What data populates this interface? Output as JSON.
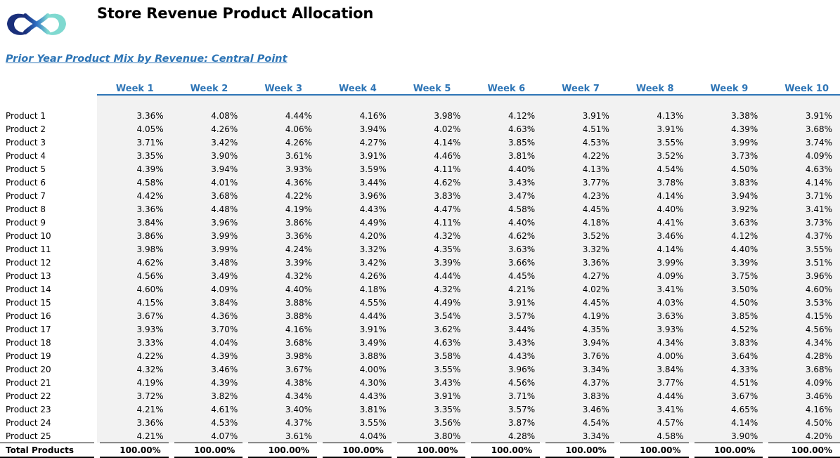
{
  "header": {
    "title": "Store Revenue Product Allocation",
    "subtitle": "Prior Year Product Mix by Revenue: Central Point",
    "logo_icon": "infinity-logo-icon",
    "logo_colors": [
      "#1a2f7a",
      "#3a8fd8",
      "#7fd9d0"
    ]
  },
  "table": {
    "columns": [
      "Week 1",
      "Week 2",
      "Week 3",
      "Week 4",
      "Week 5",
      "Week 6",
      "Week 7",
      "Week 8",
      "Week 9",
      "Week 10"
    ],
    "rows": [
      {
        "label": "Product 1",
        "values": [
          "3.36%",
          "4.08%",
          "4.44%",
          "4.16%",
          "3.98%",
          "4.12%",
          "3.91%",
          "4.13%",
          "3.38%",
          "3.91%"
        ]
      },
      {
        "label": "Product 2",
        "values": [
          "4.05%",
          "4.26%",
          "4.06%",
          "3.94%",
          "4.02%",
          "4.63%",
          "4.51%",
          "3.91%",
          "4.39%",
          "3.68%"
        ]
      },
      {
        "label": "Product 3",
        "values": [
          "3.71%",
          "3.42%",
          "4.26%",
          "4.27%",
          "4.14%",
          "3.85%",
          "4.53%",
          "3.55%",
          "3.99%",
          "3.74%"
        ]
      },
      {
        "label": "Product 4",
        "values": [
          "3.35%",
          "3.90%",
          "3.61%",
          "3.91%",
          "4.46%",
          "3.81%",
          "4.22%",
          "3.52%",
          "3.73%",
          "4.09%"
        ]
      },
      {
        "label": "Product 5",
        "values": [
          "4.39%",
          "3.94%",
          "3.93%",
          "3.59%",
          "4.11%",
          "4.40%",
          "4.13%",
          "4.54%",
          "4.50%",
          "4.63%"
        ]
      },
      {
        "label": "Product 6",
        "values": [
          "4.58%",
          "4.01%",
          "4.36%",
          "3.44%",
          "4.62%",
          "3.43%",
          "3.77%",
          "3.78%",
          "3.83%",
          "4.14%"
        ]
      },
      {
        "label": "Product 7",
        "values": [
          "4.42%",
          "3.68%",
          "4.22%",
          "3.96%",
          "3.83%",
          "3.47%",
          "4.23%",
          "4.14%",
          "3.94%",
          "3.71%"
        ]
      },
      {
        "label": "Product 8",
        "values": [
          "3.36%",
          "4.48%",
          "4.19%",
          "4.43%",
          "4.47%",
          "4.58%",
          "4.45%",
          "4.40%",
          "3.92%",
          "3.41%"
        ]
      },
      {
        "label": "Product 9",
        "values": [
          "3.84%",
          "3.96%",
          "3.86%",
          "4.49%",
          "4.11%",
          "4.40%",
          "4.18%",
          "4.41%",
          "3.63%",
          "3.73%"
        ]
      },
      {
        "label": "Product 10",
        "values": [
          "3.86%",
          "3.99%",
          "3.36%",
          "4.20%",
          "4.32%",
          "4.62%",
          "3.52%",
          "3.46%",
          "4.12%",
          "4.37%"
        ]
      },
      {
        "label": "Product 11",
        "values": [
          "3.98%",
          "3.99%",
          "4.24%",
          "3.32%",
          "4.35%",
          "3.63%",
          "3.32%",
          "4.14%",
          "4.40%",
          "3.55%"
        ]
      },
      {
        "label": "Product 12",
        "values": [
          "4.62%",
          "3.48%",
          "3.39%",
          "3.42%",
          "3.39%",
          "3.66%",
          "3.36%",
          "3.99%",
          "3.39%",
          "3.51%"
        ]
      },
      {
        "label": "Product 13",
        "values": [
          "4.56%",
          "3.49%",
          "4.32%",
          "4.26%",
          "4.44%",
          "4.45%",
          "4.27%",
          "4.09%",
          "3.75%",
          "3.96%"
        ]
      },
      {
        "label": "Product 14",
        "values": [
          "4.60%",
          "4.09%",
          "4.40%",
          "4.18%",
          "4.32%",
          "4.21%",
          "4.02%",
          "3.41%",
          "3.50%",
          "4.60%"
        ]
      },
      {
        "label": "Product 15",
        "values": [
          "4.15%",
          "3.84%",
          "3.88%",
          "4.55%",
          "4.49%",
          "3.91%",
          "4.45%",
          "4.03%",
          "4.50%",
          "3.53%"
        ]
      },
      {
        "label": "Product 16",
        "values": [
          "3.67%",
          "4.36%",
          "3.88%",
          "4.44%",
          "3.54%",
          "3.57%",
          "4.19%",
          "3.63%",
          "3.85%",
          "4.15%"
        ]
      },
      {
        "label": "Product 17",
        "values": [
          "3.93%",
          "3.70%",
          "4.16%",
          "3.91%",
          "3.62%",
          "3.44%",
          "4.35%",
          "3.93%",
          "4.52%",
          "4.56%"
        ]
      },
      {
        "label": "Product 18",
        "values": [
          "3.33%",
          "4.04%",
          "3.68%",
          "3.49%",
          "4.63%",
          "3.43%",
          "3.94%",
          "4.34%",
          "3.83%",
          "4.34%"
        ]
      },
      {
        "label": "Product 19",
        "values": [
          "4.22%",
          "4.39%",
          "3.98%",
          "3.88%",
          "3.58%",
          "4.43%",
          "3.76%",
          "4.00%",
          "3.64%",
          "4.28%"
        ]
      },
      {
        "label": "Product 20",
        "values": [
          "4.32%",
          "3.46%",
          "3.67%",
          "4.00%",
          "3.55%",
          "3.96%",
          "3.34%",
          "3.84%",
          "4.33%",
          "3.68%"
        ]
      },
      {
        "label": "Product 21",
        "values": [
          "4.19%",
          "4.39%",
          "4.38%",
          "4.30%",
          "3.43%",
          "4.56%",
          "4.37%",
          "3.77%",
          "4.51%",
          "4.09%"
        ]
      },
      {
        "label": "Product 22",
        "values": [
          "3.72%",
          "3.82%",
          "4.34%",
          "4.43%",
          "3.91%",
          "3.71%",
          "3.83%",
          "4.44%",
          "3.67%",
          "3.46%"
        ]
      },
      {
        "label": "Product 23",
        "values": [
          "4.21%",
          "4.61%",
          "3.40%",
          "3.81%",
          "3.35%",
          "3.57%",
          "3.46%",
          "3.41%",
          "4.65%",
          "4.16%"
        ]
      },
      {
        "label": "Product 24",
        "values": [
          "3.36%",
          "4.53%",
          "4.37%",
          "3.55%",
          "3.56%",
          "3.87%",
          "4.54%",
          "4.57%",
          "4.14%",
          "4.50%"
        ]
      },
      {
        "label": "Product 25",
        "values": [
          "4.21%",
          "4.07%",
          "3.61%",
          "4.04%",
          "3.80%",
          "4.28%",
          "3.34%",
          "4.58%",
          "3.90%",
          "4.20%"
        ]
      }
    ],
    "total": {
      "label": "Total Products",
      "values": [
        "100.00%",
        "100.00%",
        "100.00%",
        "100.00%",
        "100.00%",
        "100.00%",
        "100.00%",
        "100.00%",
        "100.00%",
        "100.00%"
      ]
    }
  }
}
